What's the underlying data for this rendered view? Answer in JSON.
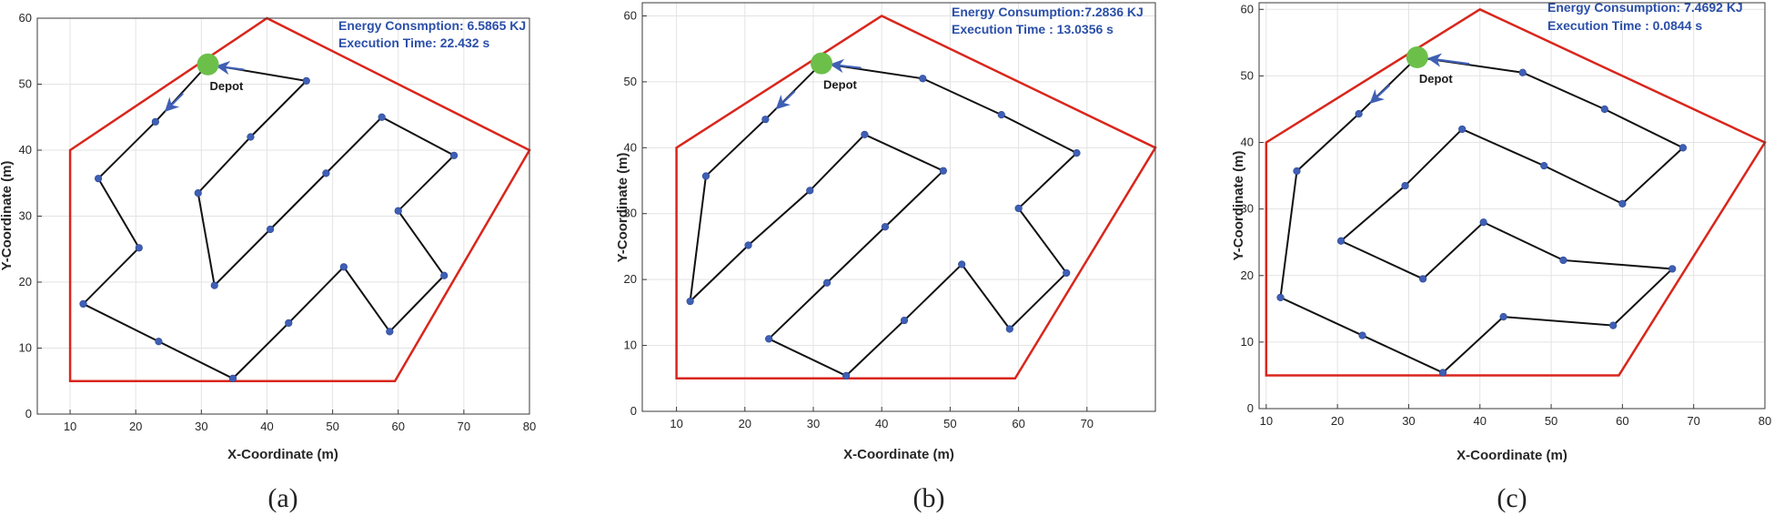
{
  "colors": {
    "boundary": "#d9261c",
    "route": "#111111",
    "node": "#3f5fb5",
    "depot": "#6cc04a",
    "arrow": "#3f5fb5",
    "grid": "#e3e3e3",
    "info_text": "#2b4fa8"
  },
  "chart_data": [
    {
      "type": "line",
      "caption": "(a)",
      "xlabel": "X-Coordinate (m)",
      "ylabel": "Y-Coordinate (m)",
      "xlim": [
        5,
        80
      ],
      "ylim": [
        0,
        60
      ],
      "xticks": [
        10,
        20,
        30,
        40,
        50,
        60,
        70,
        80
      ],
      "yticks": [
        0,
        10,
        20,
        30,
        40,
        50,
        60
      ],
      "grid": true,
      "info": [
        "Energy Consmption: 6.5865 KJ",
        "Execution  Time: 22.432 s"
      ],
      "depot_label": "Depot",
      "depot": [
        31,
        53
      ],
      "boundary": [
        [
          10,
          5
        ],
        [
          10,
          40
        ],
        [
          40,
          60
        ],
        [
          80,
          40
        ],
        [
          59.5,
          5
        ]
      ],
      "route": [
        [
          31,
          53
        ],
        [
          46,
          50.5
        ],
        [
          37.5,
          42
        ],
        [
          29.5,
          33.5
        ],
        [
          32,
          19.5
        ],
        [
          40.5,
          28
        ],
        [
          49,
          36.5
        ],
        [
          57.5,
          45
        ],
        [
          68.5,
          39.2
        ],
        [
          60,
          30.8
        ],
        [
          67,
          21
        ],
        [
          58.7,
          12.5
        ],
        [
          51.7,
          22.3
        ],
        [
          43.3,
          13.8
        ],
        [
          34.8,
          5.4
        ],
        [
          23.5,
          11
        ],
        [
          12,
          16.7
        ],
        [
          20.5,
          25.2
        ],
        [
          14.3,
          35.7
        ],
        [
          23,
          44.3
        ],
        [
          31,
          53
        ]
      ],
      "arrows": [
        [
          [
            36.5,
            52.2
          ],
          [
            32.6,
            52.7
          ]
        ],
        [
          [
            27.2,
            48.6
          ],
          [
            24.7,
            46.1
          ]
        ]
      ]
    },
    {
      "type": "line",
      "caption": "(b)",
      "xlabel": "X-Coordinate (m)",
      "ylabel": "Y-Coordinate (m)",
      "xlim": [
        5,
        80
      ],
      "ylim": [
        0,
        62
      ],
      "xticks": [
        10,
        20,
        30,
        40,
        50,
        60,
        70
      ],
      "yticks": [
        0,
        10,
        20,
        30,
        40,
        50,
        60
      ],
      "grid": true,
      "info": [
        "Energy Consumption:7.2836 KJ",
        "Execution Time : 13.0356 s"
      ],
      "depot_label": "Depot",
      "depot": [
        31.2,
        52.8
      ],
      "boundary": [
        [
          10,
          5
        ],
        [
          10,
          40
        ],
        [
          40,
          60
        ],
        [
          80,
          40
        ],
        [
          59.5,
          5
        ]
      ],
      "route": [
        [
          31.2,
          52.8
        ],
        [
          46,
          50.5
        ],
        [
          57.5,
          45
        ],
        [
          68.5,
          39.2
        ],
        [
          60,
          30.8
        ],
        [
          67,
          21
        ],
        [
          58.7,
          12.5
        ],
        [
          51.7,
          22.3
        ],
        [
          43.3,
          13.8
        ],
        [
          34.8,
          5.4
        ],
        [
          23.5,
          11
        ],
        [
          32,
          19.5
        ],
        [
          40.5,
          28
        ],
        [
          49,
          36.5
        ],
        [
          37.5,
          42
        ],
        [
          29.5,
          33.5
        ],
        [
          20.5,
          25.2
        ],
        [
          12,
          16.7
        ],
        [
          14.3,
          35.7
        ],
        [
          23,
          44.3
        ],
        [
          31.2,
          52.8
        ]
      ],
      "arrows": [
        [
          [
            37,
            52.1
          ],
          [
            32.8,
            52.6
          ]
        ],
        [
          [
            27.3,
            48.6
          ],
          [
            24.8,
            46.1
          ]
        ]
      ]
    },
    {
      "type": "line",
      "caption": "(c)",
      "xlabel": "X-Coordinate (m)",
      "ylabel": "Y-Coordinate (m)",
      "xlim": [
        9,
        80
      ],
      "ylim": [
        0,
        61
      ],
      "xticks": [
        10,
        20,
        30,
        40,
        50,
        60,
        70,
        80
      ],
      "yticks": [
        0,
        10,
        20,
        30,
        40,
        50,
        60
      ],
      "grid": true,
      "info": [
        "Energy Consumption: 7.4692 KJ",
        "Execution Time : 0.0844 s"
      ],
      "depot_label": "Depot",
      "depot": [
        31.2,
        52.8
      ],
      "boundary": [
        [
          10,
          5
        ],
        [
          10,
          40
        ],
        [
          40,
          60
        ],
        [
          80,
          40
        ],
        [
          59.5,
          5
        ]
      ],
      "route": [
        [
          31.2,
          52.8
        ],
        [
          46,
          50.5
        ],
        [
          57.5,
          45
        ],
        [
          68.5,
          39.2
        ],
        [
          60,
          30.8
        ],
        [
          49,
          36.5
        ],
        [
          37.5,
          42
        ],
        [
          29.5,
          33.5
        ],
        [
          20.5,
          25.2
        ],
        [
          32,
          19.5
        ],
        [
          40.5,
          28
        ],
        [
          51.7,
          22.3
        ],
        [
          67,
          21
        ],
        [
          58.7,
          12.5
        ],
        [
          43.3,
          13.8
        ],
        [
          34.8,
          5.4
        ],
        [
          23.5,
          11
        ],
        [
          12,
          16.7
        ],
        [
          14.3,
          35.7
        ],
        [
          23,
          44.3
        ],
        [
          31.2,
          52.8
        ]
      ],
      "arrows": [
        [
          [
            38.5,
            51.8
          ],
          [
            33,
            52.6
          ]
        ],
        [
          [
            27.3,
            48.6
          ],
          [
            24.8,
            46.1
          ]
        ]
      ]
    }
  ]
}
